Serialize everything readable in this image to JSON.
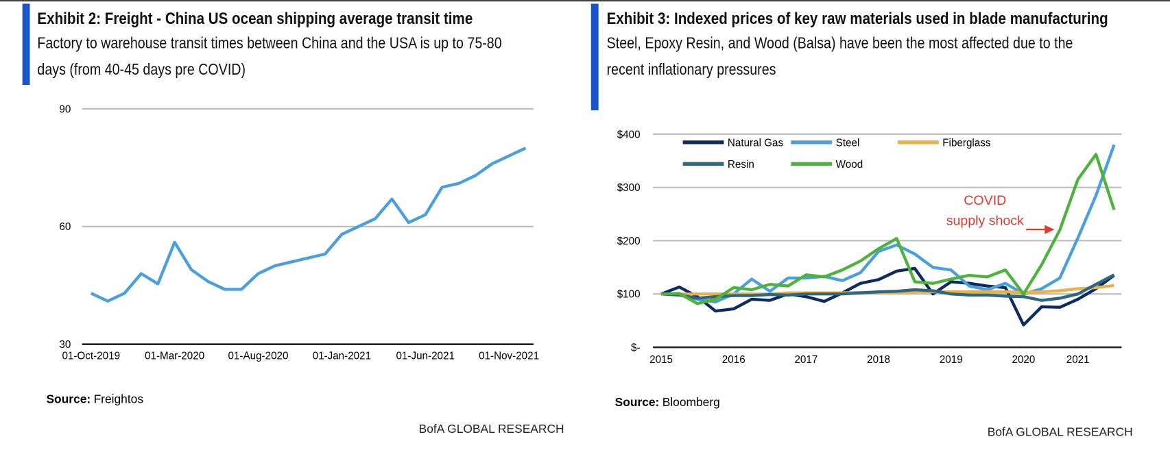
{
  "chart_data": [
    {
      "type": "line",
      "title": "Exhibit 2: Freight - China US ocean shipping average transit time",
      "subtitle": "Factory to warehouse transit times between China and the USA is up to 75-80 days (from 40-45 days pre COVID)",
      "categories": [
        "01-Oct-2019",
        null,
        null,
        null,
        null,
        "01-Mar-2020",
        null,
        null,
        null,
        null,
        "01-Aug-2020",
        null,
        null,
        null,
        null,
        "01-Jan-2021",
        null,
        null,
        null,
        null,
        "01-Jun-2021",
        null,
        null,
        null,
        null,
        "01-Nov-2021",
        null
      ],
      "values": [
        43,
        41,
        43,
        48,
        45.4,
        56,
        49,
        46,
        44,
        44,
        48,
        50,
        51,
        52,
        53,
        58,
        60,
        62,
        67,
        61,
        63,
        70,
        71,
        73,
        76,
        78,
        80
      ],
      "color": "#4a9fdc",
      "ylim": [
        30,
        90
      ],
      "yticks": [
        30,
        60,
        90
      ],
      "grid": true,
      "source_label": "Source:",
      "source": "Freightos",
      "credit": "BofA GLOBAL RESEARCH"
    },
    {
      "type": "line",
      "title": "Exhibit 3: Indexed prices of key raw materials used in blade manufacturing",
      "subtitle": "Steel, Epoxy Resin, and Wood (Balsa) have been the most affected due to the recent inflationary pressures",
      "categories": [
        "2015",
        null,
        null,
        null,
        "2016",
        null,
        null,
        null,
        "2017",
        null,
        null,
        null,
        "2018",
        null,
        null,
        null,
        "2019",
        null,
        null,
        null,
        "2020",
        null,
        null,
        "2021",
        null,
        null
      ],
      "series": [
        {
          "name": "Natural Gas",
          "color": "#0d2b5e",
          "values": [
            100,
            113,
            95,
            68,
            72,
            90,
            88,
            100,
            95,
            86,
            102,
            120,
            127,
            143,
            148,
            100,
            123,
            120,
            115,
            112,
            42,
            76,
            75,
            90,
            110,
            135
          ]
        },
        {
          "name": "Steel",
          "color": "#4a9fdc",
          "values": [
            100,
            98,
            90,
            85,
            100,
            128,
            105,
            130,
            130,
            133,
            125,
            140,
            180,
            192,
            175,
            150,
            145,
            115,
            108,
            120,
            100,
            110,
            130,
            205,
            285,
            380
          ]
        },
        {
          "name": "Fiberglass",
          "color": "#e8b14a",
          "values": [
            100,
            100,
            100,
            100,
            100,
            100,
            100,
            102,
            102,
            102,
            102,
            103,
            103,
            103,
            104,
            104,
            104,
            104,
            104,
            104,
            103,
            104,
            106,
            110,
            112,
            116
          ]
        },
        {
          "name": "Resin",
          "color": "#2f6680",
          "values": [
            100,
            98,
            92,
            95,
            97,
            97,
            99,
            98,
            100,
            100,
            100,
            102,
            104,
            105,
            108,
            106,
            100,
            98,
            98,
            96,
            95,
            88,
            92,
            100,
            118,
            136
          ]
        },
        {
          "name": "Wood",
          "color": "#4db33d",
          "values": [
            100,
            101,
            82,
            90,
            112,
            108,
            118,
            115,
            136,
            132,
            145,
            162,
            185,
            204,
            123,
            120,
            128,
            135,
            132,
            145,
            100,
            155,
            220,
            315,
            362,
            258
          ]
        }
      ],
      "ylim": [
        0,
        400
      ],
      "yticks": [
        {
          "value": 0,
          "label": "$-"
        },
        {
          "value": 100,
          "label": "$100"
        },
        {
          "value": 200,
          "label": "$200"
        },
        {
          "value": 300,
          "label": "$300"
        },
        {
          "value": 400,
          "label": "$400"
        }
      ],
      "grid": true,
      "legend": "top-left",
      "annotation": [
        "COVID",
        "supply shock"
      ],
      "annotation_color": "#e03a2e",
      "source_label": "Source:",
      "source": "Bloomberg",
      "credit": "BofA GLOBAL RESEARCH"
    }
  ]
}
